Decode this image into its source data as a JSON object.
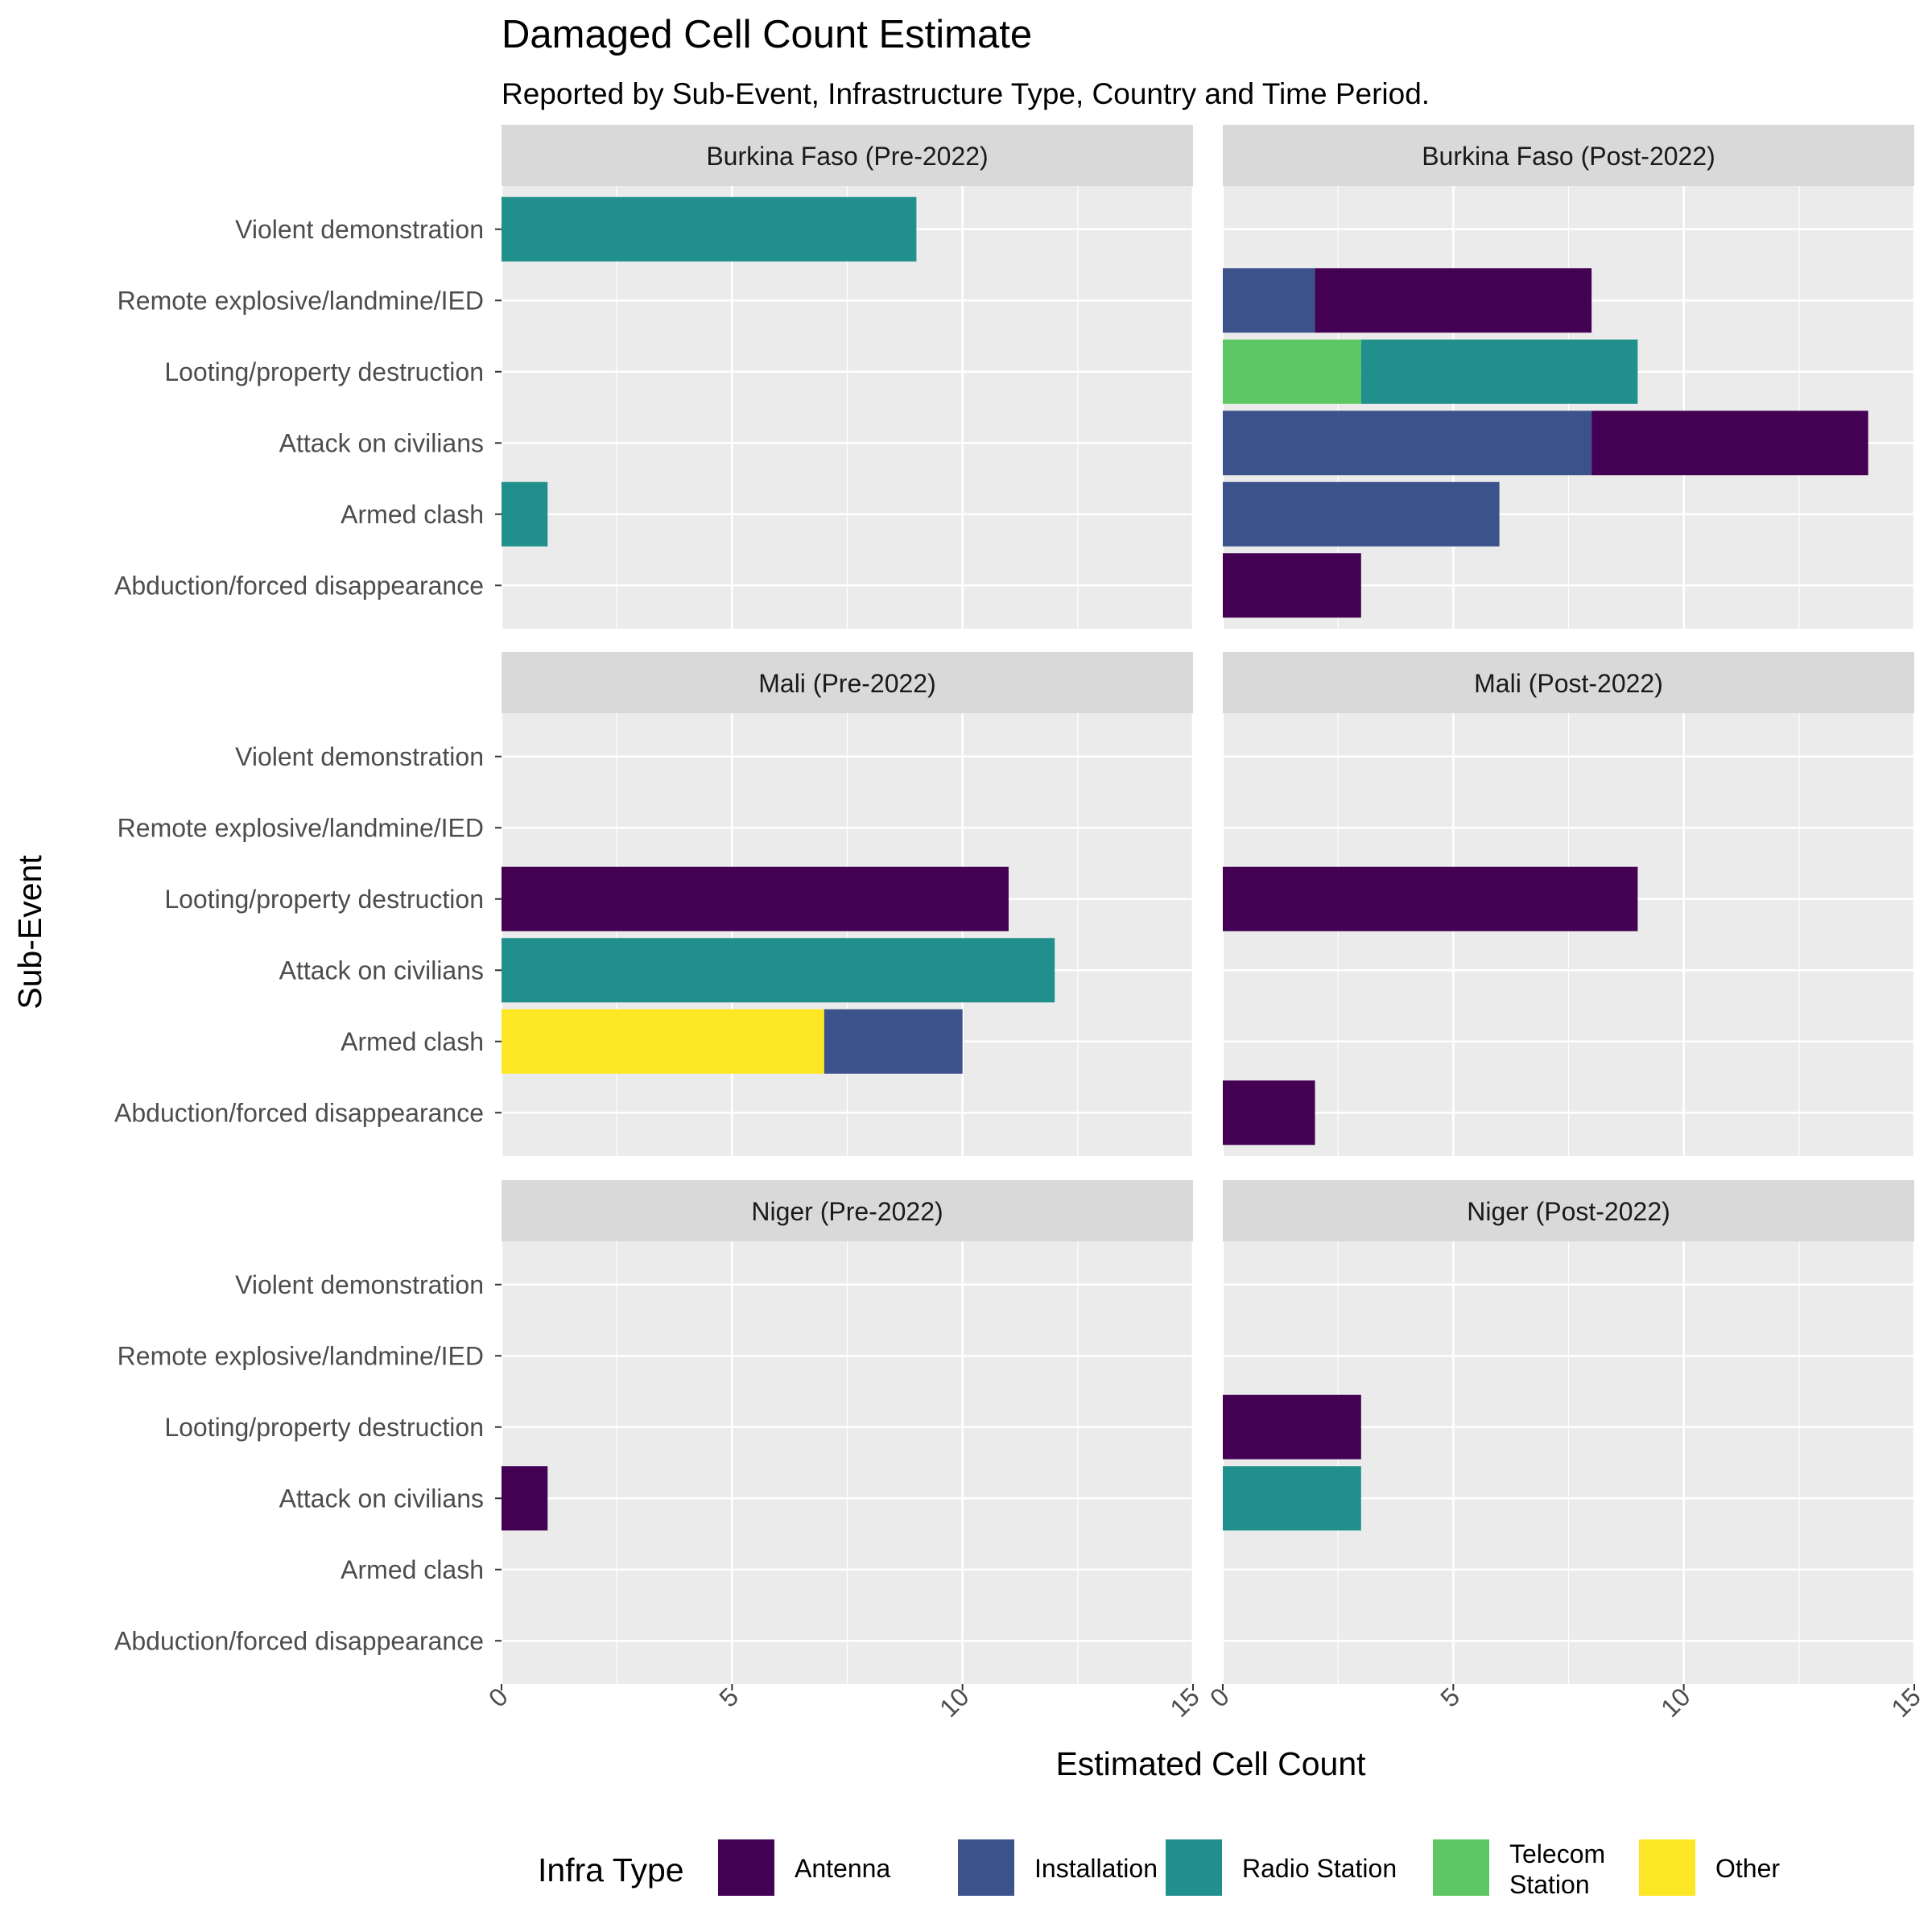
{
  "chart_data": {
    "type": "bar",
    "orientation": "horizontal",
    "stacked": true,
    "title": "Damaged Cell Count Estimate",
    "subtitle": "Reported by Sub-Event, Infrastructure Type, Country and Time Period.",
    "xlabel": "Estimated Cell Count",
    "ylabel": "Sub-Event",
    "xlim": [
      0,
      15
    ],
    "x_ticks": [
      "0",
      "5",
      "10",
      "15"
    ],
    "grid": true,
    "legend": {
      "title": "Infra Type",
      "position": "bottom",
      "entries": [
        {
          "key": "antenna",
          "label": "Antenna",
          "color": "#440154"
        },
        {
          "key": "installation",
          "label": "Installation",
          "color": "#3B528B"
        },
        {
          "key": "radio",
          "label": "Radio Station",
          "color": "#21908C"
        },
        {
          "key": "telecom",
          "label": "Telecom\nStation",
          "color": "#5DC863"
        },
        {
          "key": "other",
          "label": "Other",
          "color": "#FDE725"
        }
      ]
    },
    "categories": [
      "Violent demonstration",
      "Remote explosive/landmine/IED",
      "Looting/property destruction",
      "Attack on civilians",
      "Armed clash",
      "Abduction/forced disappearance"
    ],
    "panels": [
      {
        "label": "Burkina Faso (Pre-2022)",
        "bars": [
          {
            "category": "Violent demonstration",
            "segments": [
              {
                "type": "radio",
                "value": 9
              }
            ]
          },
          {
            "category": "Armed clash",
            "segments": [
              {
                "type": "radio",
                "value": 1
              }
            ]
          }
        ]
      },
      {
        "label": "Burkina Faso (Post-2022)",
        "bars": [
          {
            "category": "Remote explosive/landmine/IED",
            "segments": [
              {
                "type": "installation",
                "value": 2
              },
              {
                "type": "antenna",
                "value": 6
              }
            ]
          },
          {
            "category": "Looting/property destruction",
            "segments": [
              {
                "type": "telecom",
                "value": 3
              },
              {
                "type": "radio",
                "value": 6
              }
            ]
          },
          {
            "category": "Attack on civilians",
            "segments": [
              {
                "type": "installation",
                "value": 8
              },
              {
                "type": "antenna",
                "value": 6
              }
            ]
          },
          {
            "category": "Armed clash",
            "segments": [
              {
                "type": "installation",
                "value": 6
              }
            ]
          },
          {
            "category": "Abduction/forced disappearance",
            "segments": [
              {
                "type": "antenna",
                "value": 3
              }
            ]
          }
        ]
      },
      {
        "label": "Mali (Pre-2022)",
        "bars": [
          {
            "category": "Looting/property destruction",
            "segments": [
              {
                "type": "antenna",
                "value": 11
              }
            ]
          },
          {
            "category": "Attack on civilians",
            "segments": [
              {
                "type": "radio",
                "value": 12
              }
            ]
          },
          {
            "category": "Armed clash",
            "segments": [
              {
                "type": "other",
                "value": 7
              },
              {
                "type": "installation",
                "value": 3
              }
            ]
          }
        ]
      },
      {
        "label": "Mali (Post-2022)",
        "bars": [
          {
            "category": "Looting/property destruction",
            "segments": [
              {
                "type": "antenna",
                "value": 9
              }
            ]
          },
          {
            "category": "Abduction/forced disappearance",
            "segments": [
              {
                "type": "antenna",
                "value": 2
              }
            ]
          }
        ]
      },
      {
        "label": "Niger (Pre-2022)",
        "bars": [
          {
            "category": "Attack on civilians",
            "segments": [
              {
                "type": "antenna",
                "value": 1
              }
            ]
          }
        ]
      },
      {
        "label": "Niger (Post-2022)",
        "bars": [
          {
            "category": "Looting/property destruction",
            "segments": [
              {
                "type": "antenna",
                "value": 3
              }
            ]
          },
          {
            "category": "Attack on civilians",
            "segments": [
              {
                "type": "radio",
                "value": 3
              }
            ]
          }
        ]
      }
    ]
  }
}
